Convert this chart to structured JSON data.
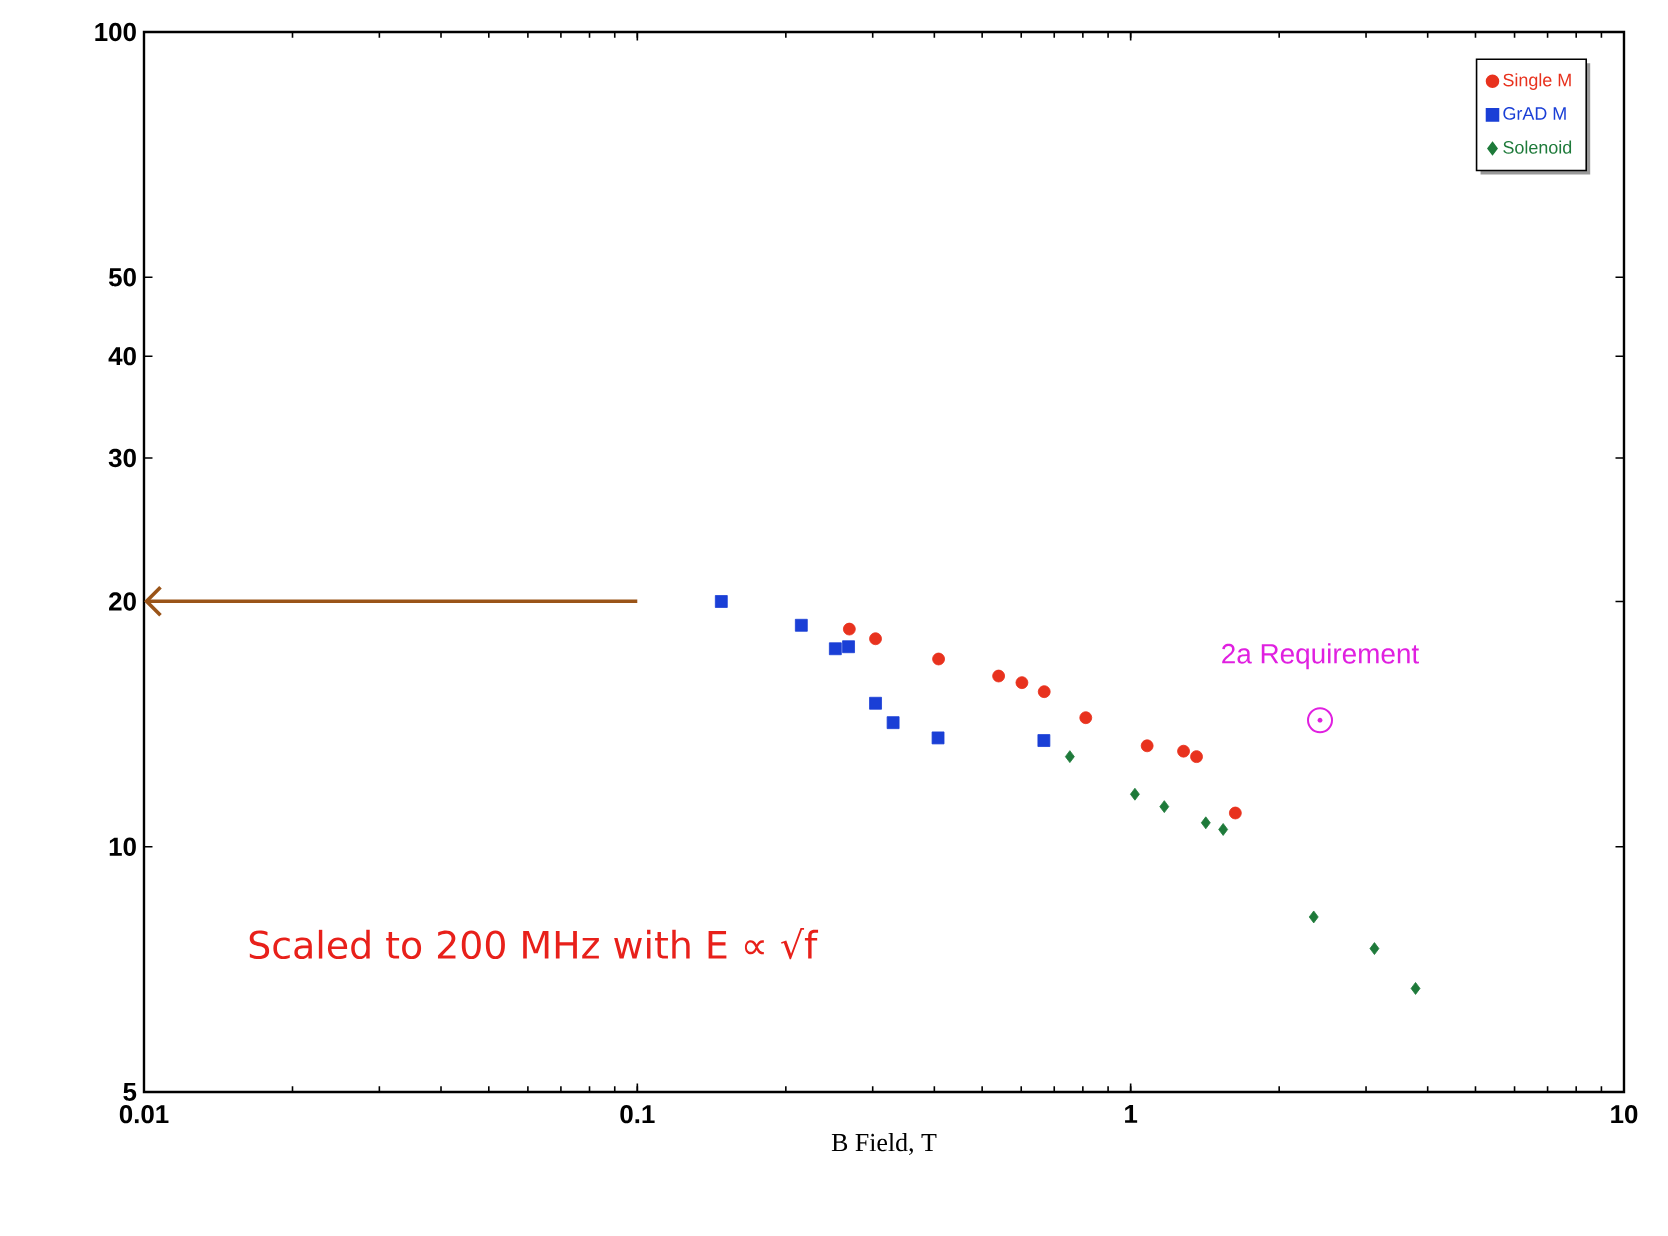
{
  "chart_data": {
    "type": "scatter",
    "xlabel": "B Field, T",
    "log": "xy",
    "xlim": [
      0.01,
      10
    ],
    "ylim": [
      5,
      100
    ],
    "xticks": [
      0.01,
      0.1,
      1,
      10
    ],
    "yticks": [
      5,
      10,
      20,
      30,
      40,
      50,
      100
    ],
    "grid": false,
    "legend": "top right",
    "series": [
      {
        "name": "Single M",
        "color": "#e8321e",
        "marker": "circle",
        "x": [
          0.269,
          0.304,
          0.408,
          0.54,
          0.602,
          0.668,
          0.811,
          1.08,
          1.28,
          1.36,
          1.63
        ],
        "values": [
          18.5,
          18.0,
          17.0,
          16.2,
          15.9,
          15.5,
          14.4,
          13.3,
          13.1,
          12.9,
          11.0
        ]
      },
      {
        "name": "GrAD M",
        "color": "#1a3fd6",
        "marker": "square",
        "x": [
          0.148,
          0.215,
          0.252,
          0.268,
          0.304,
          0.33,
          0.407,
          0.667
        ],
        "values": [
          20.0,
          18.7,
          17.5,
          17.6,
          15.0,
          14.2,
          13.6,
          13.5
        ]
      },
      {
        "name": "Solenoid",
        "color": "#1e7a3a",
        "marker": "diamond",
        "x": [
          0.753,
          1.02,
          1.17,
          1.42,
          1.54,
          2.35,
          3.12,
          3.78
        ],
        "values": [
          12.9,
          11.6,
          11.2,
          10.7,
          10.5,
          8.2,
          7.5,
          6.7
        ]
      }
    ],
    "annotations": [
      {
        "text": "2a Requirement",
        "x": 2.42,
        "y": 14.3
      },
      "Scaled to 200 MHz with E ∝ √f"
    ]
  }
}
